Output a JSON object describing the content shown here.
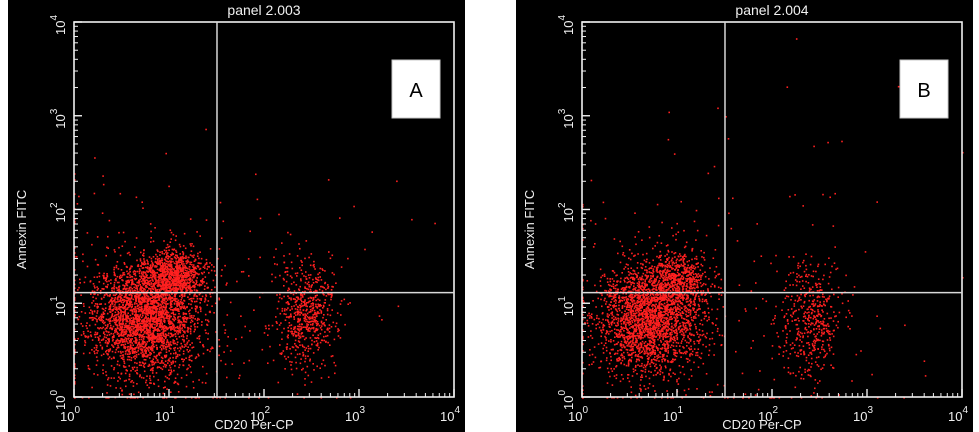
{
  "chart_data": [
    {
      "type": "scatter",
      "title": "panel 2.003",
      "badge": "A",
      "xlabel": "CD20 Per-CP",
      "ylabel": "Annexin FITC",
      "x_scale": "log",
      "y_scale": "log",
      "xlim": [
        1,
        10000
      ],
      "ylim": [
        1,
        10000
      ],
      "x_ticks": [
        {
          "base": "10",
          "exp": "0"
        },
        {
          "base": "10",
          "exp": "1"
        },
        {
          "base": "10",
          "exp": "2"
        },
        {
          "base": "10",
          "exp": "3"
        },
        {
          "base": "10",
          "exp": "4"
        }
      ],
      "y_ticks": [
        {
          "base": "10",
          "exp": "0"
        },
        {
          "base": "10",
          "exp": "1"
        },
        {
          "base": "10",
          "exp": "2"
        },
        {
          "base": "10",
          "exp": "3"
        },
        {
          "base": "10",
          "exp": "4"
        }
      ],
      "quadrant_gate": {
        "x": 32,
        "y": 13
      },
      "point_color": "#ff2020",
      "gate_color": "#d8d8d8",
      "populations": [
        {
          "center": [
            5.5,
            7
          ],
          "spread": [
            0.28,
            0.3
          ],
          "count": 2800
        },
        {
          "center": [
            11,
            20
          ],
          "spread": [
            0.16,
            0.14
          ],
          "count": 900
        },
        {
          "center": [
            280,
            8
          ],
          "spread": [
            0.16,
            0.28
          ],
          "count": 600
        },
        {
          "center": [
            15,
            10
          ],
          "spread": [
            1.1,
            0.9
          ],
          "count": 220
        }
      ],
      "seed": 11
    },
    {
      "type": "scatter",
      "title": "panel 2.004",
      "badge": "B",
      "xlabel": "CD20 Per-CP",
      "ylabel": "Annexin FITC",
      "x_scale": "log",
      "y_scale": "log",
      "xlim": [
        1,
        10000
      ],
      "ylim": [
        1,
        10000
      ],
      "x_ticks": [
        {
          "base": "10",
          "exp": "0"
        },
        {
          "base": "10",
          "exp": "1"
        },
        {
          "base": "10",
          "exp": "2"
        },
        {
          "base": "10",
          "exp": "3"
        },
        {
          "base": "10",
          "exp": "4"
        }
      ],
      "y_ticks": [
        {
          "base": "10",
          "exp": "0"
        },
        {
          "base": "10",
          "exp": "1"
        },
        {
          "base": "10",
          "exp": "2"
        },
        {
          "base": "10",
          "exp": "3"
        },
        {
          "base": "10",
          "exp": "4"
        }
      ],
      "quadrant_gate": {
        "x": 32,
        "y": 13
      },
      "point_color": "#ff2020",
      "gate_color": "#d8d8d8",
      "populations": [
        {
          "center": [
            5,
            7
          ],
          "spread": [
            0.28,
            0.3
          ],
          "count": 2400
        },
        {
          "center": [
            10,
            18
          ],
          "spread": [
            0.15,
            0.13
          ],
          "count": 500
        },
        {
          "center": [
            260,
            7
          ],
          "spread": [
            0.16,
            0.3
          ],
          "count": 450
        },
        {
          "center": [
            18,
            10
          ],
          "spread": [
            1.1,
            0.9
          ],
          "count": 220
        }
      ],
      "seed": 29
    }
  ]
}
